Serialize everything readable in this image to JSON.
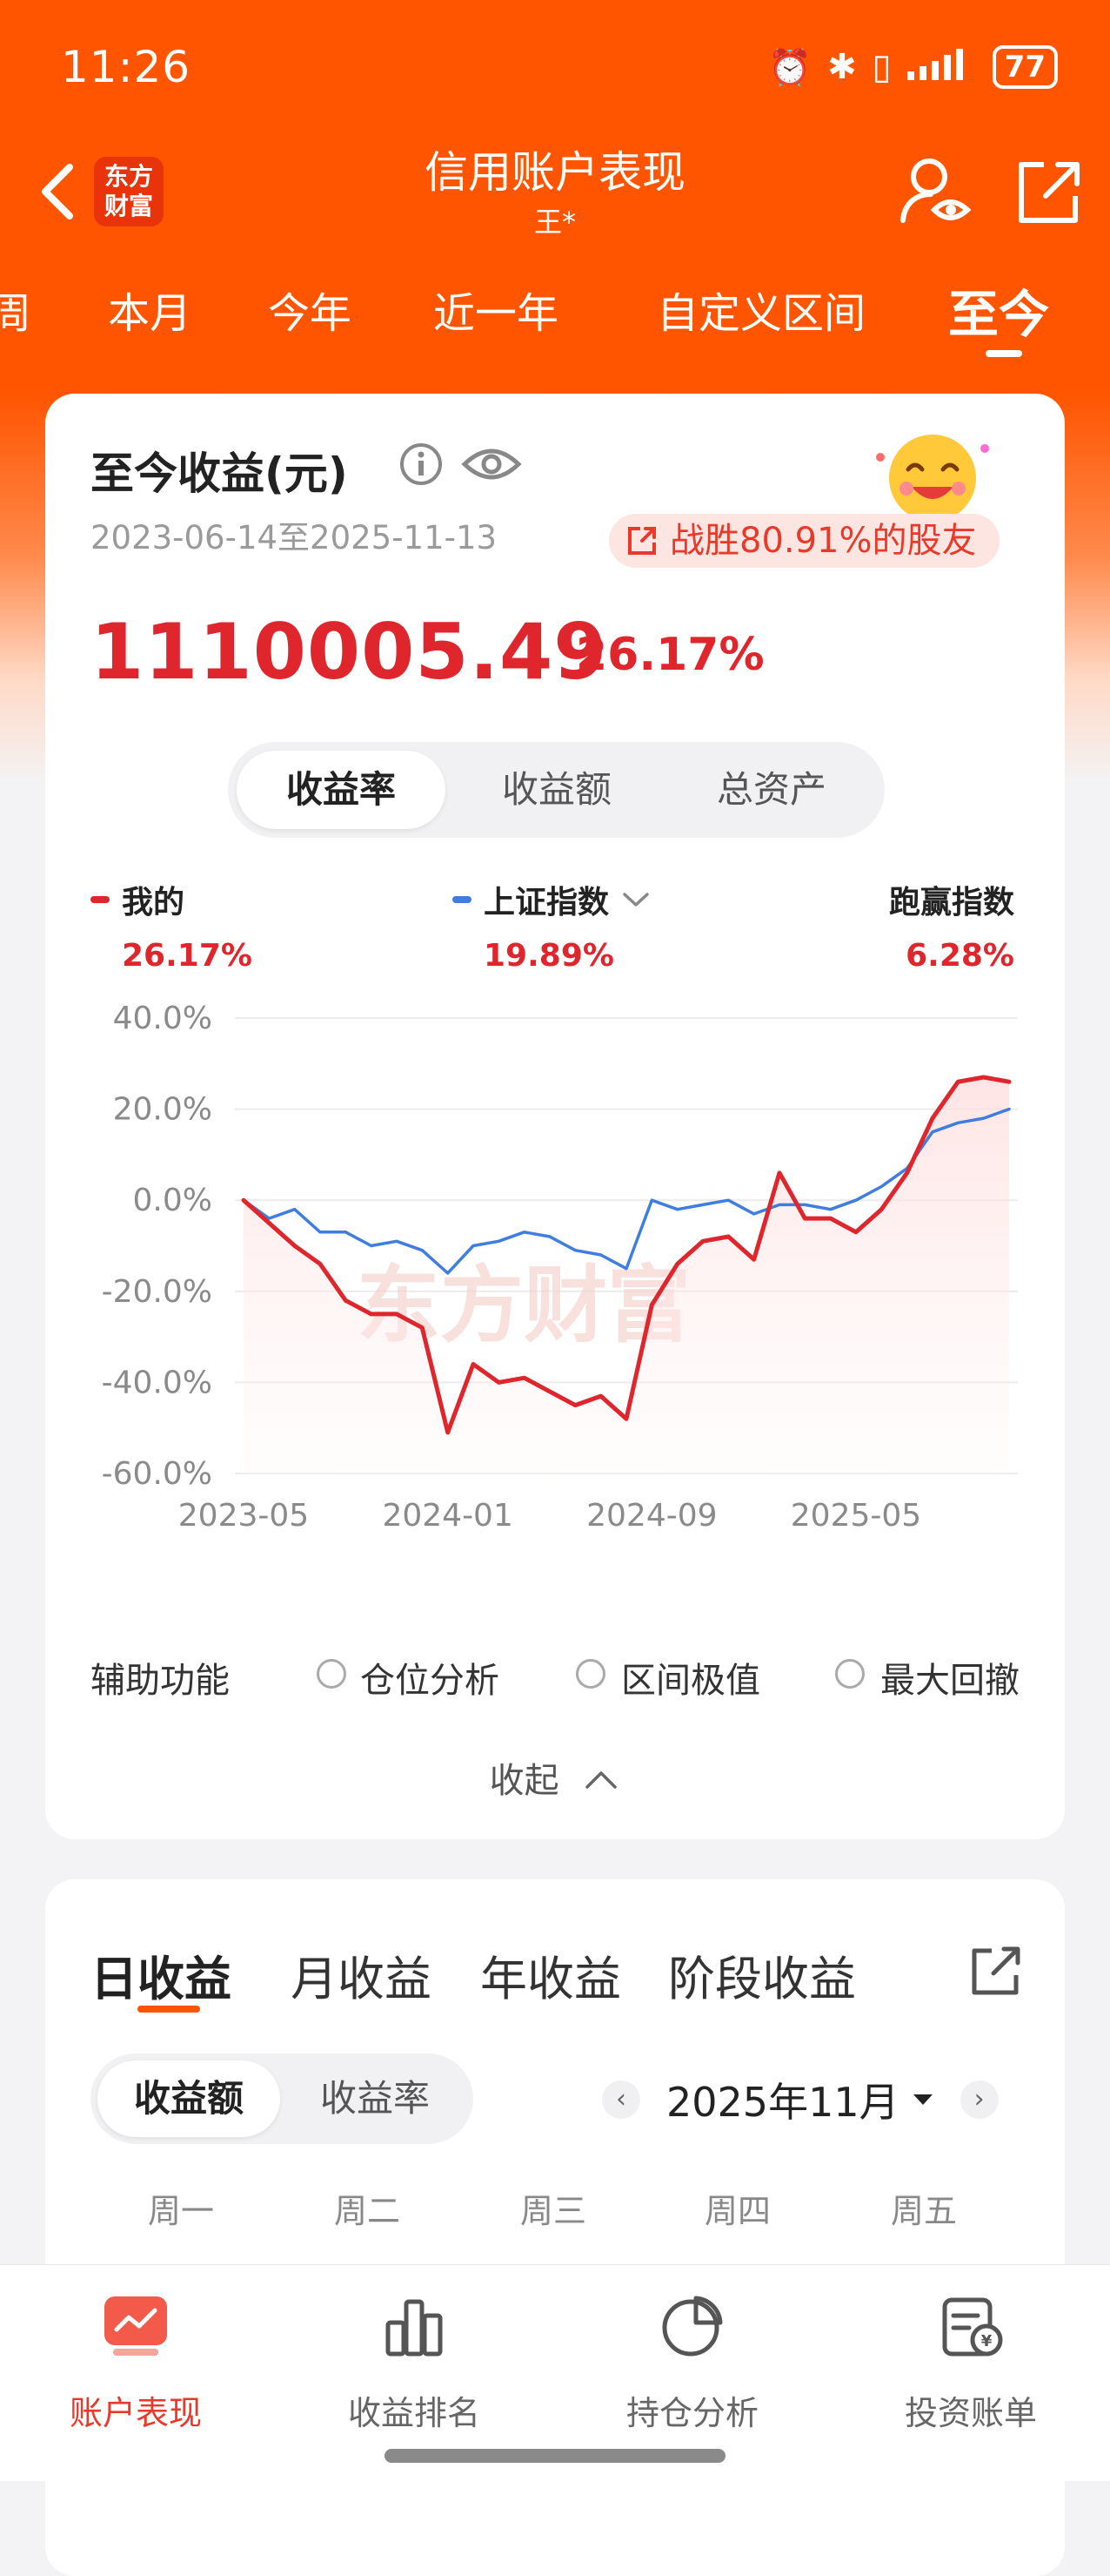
{
  "status": {
    "time": "11:26",
    "battery": "77"
  },
  "header": {
    "logo_line1": "东方",
    "logo_line2": "财富",
    "title": "信用账户表现",
    "subtitle": "王*"
  },
  "tabs": [
    {
      "label": "周"
    },
    {
      "label": "本月"
    },
    {
      "label": "今年"
    },
    {
      "label": "近一年"
    },
    {
      "label": "自定义区间"
    },
    {
      "label": "至今"
    }
  ],
  "summary": {
    "title": "至今收益(元)",
    "date_range": "2023-06-14至2025-11-13",
    "beat_text": "战胜80.91%的股友",
    "amount": "1110005.49",
    "return_pct": "26.17%"
  },
  "metric_tabs": [
    "收益率",
    "收益额",
    "总资产"
  ],
  "legend": {
    "mine_label": "我的",
    "mine_value": "26.17%",
    "index_label": "上证指数",
    "index_value": "19.89%",
    "beat_label": "跑赢指数",
    "beat_value": "6.28%"
  },
  "colors": {
    "brand": "#ff5400",
    "mine_line": "#e0262d",
    "index_line": "#3f7ee0",
    "gain_text": "#e0262d"
  },
  "chart_data": {
    "type": "line",
    "yticks": [
      "40.0%",
      "20.0%",
      "0.0%",
      "-20.0%",
      "-40.0%",
      "-60.0%"
    ],
    "xticks": [
      "2023-05",
      "2024-01",
      "2024-09",
      "2025-05"
    ],
    "ylim": [
      -60,
      40
    ],
    "xlim": [
      "2023-05",
      "2025-11"
    ],
    "watermark": "东方财富",
    "series": [
      {
        "name": "我的",
        "x": [
          "2023-05",
          "2023-06",
          "2023-07",
          "2023-08",
          "2023-09",
          "2023-10",
          "2023-11",
          "2023-12",
          "2024-01",
          "2024-02",
          "2024-03",
          "2024-04",
          "2024-05",
          "2024-06",
          "2024-07",
          "2024-08",
          "2024-09",
          "2024-10",
          "2024-11",
          "2024-12",
          "2025-01",
          "2025-02",
          "2025-03",
          "2025-04",
          "2025-05",
          "2025-06",
          "2025-07",
          "2025-08",
          "2025-09",
          "2025-10",
          "2025-11"
        ],
        "values": [
          0,
          -5,
          -10,
          -14,
          -22,
          -25,
          -25,
          -28,
          -51,
          -36,
          -40,
          -39,
          -42,
          -45,
          -43,
          -48,
          -23,
          -14,
          -9,
          -8,
          -13,
          6,
          -4,
          -4,
          -7,
          -2,
          6,
          18,
          26,
          27,
          26
        ]
      },
      {
        "name": "上证指数",
        "x": [
          "2023-05",
          "2023-06",
          "2023-07",
          "2023-08",
          "2023-09",
          "2023-10",
          "2023-11",
          "2023-12",
          "2024-01",
          "2024-02",
          "2024-03",
          "2024-04",
          "2024-05",
          "2024-06",
          "2024-07",
          "2024-08",
          "2024-09",
          "2024-10",
          "2024-11",
          "2024-12",
          "2025-01",
          "2025-02",
          "2025-03",
          "2025-04",
          "2025-05",
          "2025-06",
          "2025-07",
          "2025-08",
          "2025-09",
          "2025-10",
          "2025-11"
        ],
        "values": [
          0,
          -4,
          -2,
          -7,
          -7,
          -10,
          -9,
          -11,
          -16,
          -10,
          -9,
          -7,
          -8,
          -11,
          -12,
          -15,
          0,
          -2,
          -1,
          0,
          -3,
          -1,
          -1,
          -2,
          0,
          3,
          7,
          15,
          17,
          18,
          20
        ]
      }
    ]
  },
  "aux": {
    "label": "辅助功能",
    "options": [
      "仓位分析",
      "区间极值",
      "最大回撤"
    ],
    "collapse": "收起"
  },
  "daily": {
    "tabs": [
      "日收益",
      "月收益",
      "年收益",
      "阶段收益"
    ],
    "seg": [
      "收益额",
      "收益率"
    ],
    "month": "2025年11月",
    "weekdays": [
      "周一",
      "周二",
      "周三",
      "周四",
      "周五"
    ]
  },
  "bottom_nav": [
    "账户表现",
    "收益排名",
    "持仓分析",
    "投资账单"
  ]
}
